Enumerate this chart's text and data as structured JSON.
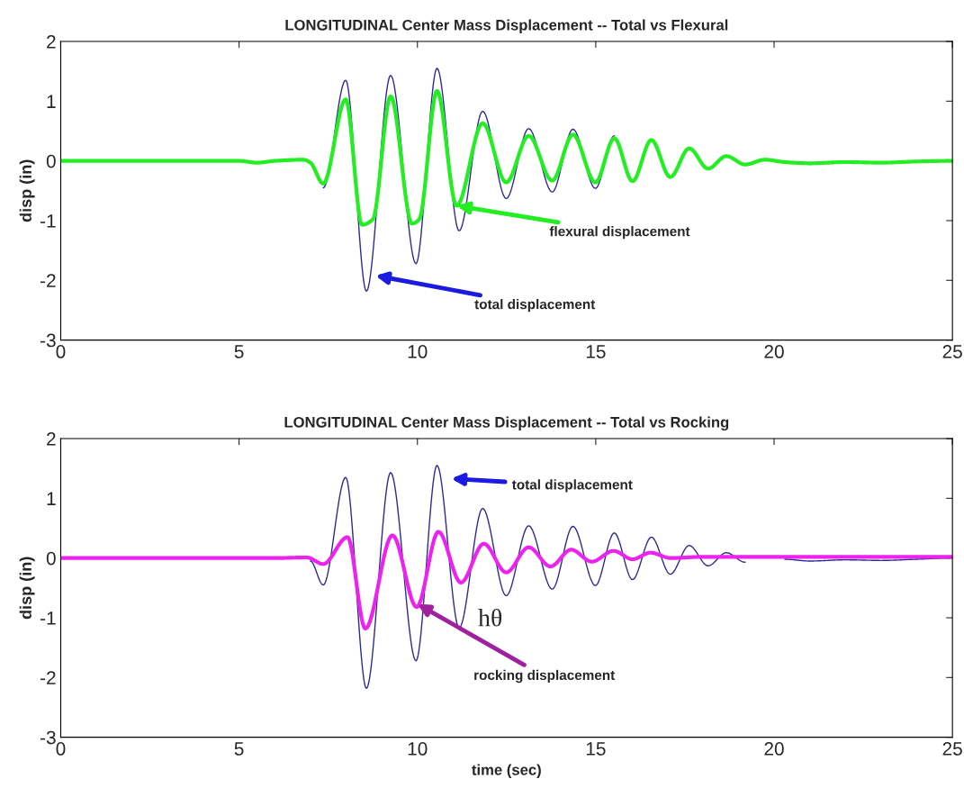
{
  "chart_data": [
    {
      "type": "line",
      "title": "LONGITUDINAL Center Mass Displacement -- Total vs Flexural",
      "ylabel": "disp (in)",
      "xlim": [
        0,
        25
      ],
      "xticks": [
        0,
        5,
        10,
        15,
        20,
        25
      ],
      "ylim": [
        -3,
        2
      ],
      "yticks": [
        -3,
        -2,
        -1,
        0,
        1,
        2
      ],
      "grid": false,
      "legend": false,
      "marker": "none",
      "line_style": "solid",
      "series": [
        {
          "color": "#2a2a9a",
          "x": [
            7.36,
            7.99,
            8.57,
            9.25,
            9.96,
            10.55,
            11.17,
            11.83,
            12.49,
            13.12,
            13.78,
            14.36,
            14.99,
            15.52
          ],
          "values": [
            -0.45,
            1.35,
            -2.18,
            1.43,
            -1.72,
            1.55,
            -1.17,
            0.83,
            -0.63,
            0.54,
            -0.52,
            0.53,
            -0.46,
            0.42
          ]
        },
        {
          "color": "#22ee22",
          "x": [
            0,
            5,
            5.5,
            6,
            6.8,
            7.0,
            7.36,
            7.99,
            8.45,
            8.75,
            9.25,
            9.85,
            10.05,
            10.55,
            11.1,
            11.83,
            12.49,
            13.12,
            13.78,
            14.36,
            14.99,
            15.52,
            16.03,
            16.56,
            17.09,
            17.62,
            18.15,
            18.66,
            19.19,
            19.74,
            20.3,
            21,
            22,
            23,
            24,
            25
          ],
          "values": [
            0,
            0,
            -0.03,
            0,
            0.02,
            -0.03,
            -0.38,
            1.03,
            -1.07,
            -0.98,
            1.08,
            -1.05,
            -0.98,
            1.17,
            -0.75,
            0.63,
            -0.36,
            0.42,
            -0.33,
            0.44,
            -0.36,
            0.38,
            -0.34,
            0.35,
            -0.27,
            0.21,
            -0.13,
            0.08,
            -0.06,
            0.02,
            -0.02,
            -0.04,
            -0.02,
            -0.03,
            -0.01,
            0
          ]
        }
      ],
      "annotations": [
        {
          "text": "flexural displacement",
          "x": 11.1,
          "y": -0.75
        },
        "total displacement"
      ]
    },
    {
      "type": "line",
      "title": "LONGITUDINAL Center Mass Displacement -- Total vs Rocking",
      "xlabel": "time (sec)",
      "ylabel": "disp (in)",
      "xlim": [
        0,
        25
      ],
      "xticks": [
        0,
        5,
        10,
        15,
        20,
        25
      ],
      "ylim": [
        -3,
        2
      ],
      "yticks": [
        -3,
        -2,
        -1,
        0,
        1,
        2
      ],
      "grid": false,
      "legend": false,
      "marker": "none",
      "line_style": "solid",
      "series": [
        {
          "color": "#2a2a9a",
          "x": [
            7.0,
            7.36,
            7.99,
            8.57,
            9.25,
            9.96,
            10.55,
            11.17,
            11.83,
            12.49,
            13.12,
            13.78,
            14.36,
            14.99,
            15.52,
            16.03,
            16.56,
            17.09,
            17.62,
            18.15,
            18.66,
            19.19,
            19.74,
            20.3,
            21,
            22,
            23,
            24,
            25
          ],
          "values": [
            -0.05,
            -0.45,
            1.35,
            -2.18,
            1.43,
            -1.72,
            1.55,
            -1.17,
            0.83,
            -0.63,
            0.54,
            -0.52,
            0.53,
            -0.46,
            0.42,
            -0.36,
            0.35,
            -0.27,
            0.21,
            -0.13,
            0.09,
            -0.07,
            null,
            -0.02,
            -0.05,
            -0.03,
            -0.04,
            -0.02,
            0
          ]
        },
        {
          "color": "#ee22ee",
          "x": [
            0,
            5,
            6,
            6.9,
            7.36,
            8.04,
            8.54,
            9.3,
            9.98,
            10.59,
            11.22,
            11.86,
            12.49,
            13.12,
            13.73,
            14.31,
            14.89,
            15.5,
            16.03,
            16.53,
            17.1,
            18,
            20,
            22,
            25
          ],
          "values": [
            0,
            0,
            0,
            0.01,
            -0.1,
            0.35,
            -1.18,
            0.38,
            -0.82,
            0.44,
            -0.41,
            0.24,
            -0.24,
            0.18,
            -0.14,
            0.14,
            -0.06,
            0.12,
            -0.02,
            0.09,
            0.0,
            0.02,
            0.02,
            0.02,
            0.02
          ]
        }
      ],
      "annotations": [
        "total displacement",
        "hθ",
        {
          "text": "rocking displacement",
          "x": 10.0,
          "y": -0.77
        }
      ]
    }
  ]
}
